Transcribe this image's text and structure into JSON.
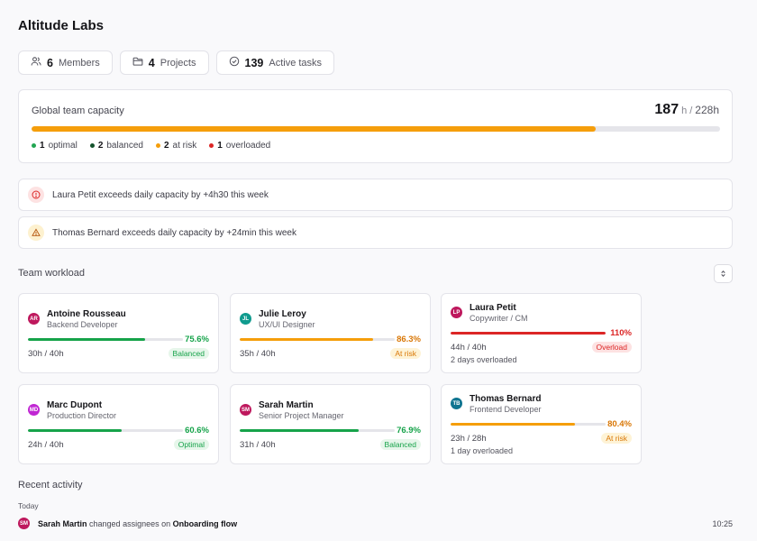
{
  "app": {
    "title": "Altitude Labs"
  },
  "stats": [
    {
      "value": "6",
      "label": "Members",
      "icon": "users-icon"
    },
    {
      "value": "4",
      "label": "Projects",
      "icon": "folder-icon"
    },
    {
      "value": "139",
      "label": "Active tasks",
      "icon": "check-circle-icon"
    }
  ],
  "capacity": {
    "label": "Global team capacity",
    "used": "187",
    "used_unit": "h",
    "sep": "/",
    "total": "228h",
    "fill_fraction": 0.82,
    "legend": [
      {
        "count": "1",
        "label": "optimal",
        "color": "#22a652"
      },
      {
        "count": "2",
        "label": "balanced",
        "color": "#14532d"
      },
      {
        "count": "2",
        "label": "at risk",
        "color": "#f59e0b"
      },
      {
        "count": "1",
        "label": "overloaded",
        "color": "#dc2626"
      }
    ]
  },
  "alerts": [
    {
      "text": "Laura Petit exceeds daily capacity by +4h30 this week",
      "icon": "alert-circle-icon"
    },
    {
      "text": "Thomas Bernard exceeds daily capacity by +24min this week",
      "icon": "warning-triangle-icon"
    }
  ],
  "workload": {
    "title": "Team workload",
    "members": [
      {
        "initials": "AR",
        "name": "Antoine Rousseau",
        "role": "Backend Developer",
        "percent": "75.6%",
        "fraction": 0.756,
        "hours": "30h / 40h",
        "status": "Balanced",
        "note": "",
        "avatar_color": "#be185d",
        "bar_color": "#16a34a"
      },
      {
        "initials": "JL",
        "name": "Julie Leroy",
        "role": "UX/UI Designer",
        "percent": "86.3%",
        "fraction": 0.863,
        "hours": "35h / 40h",
        "status": "At risk",
        "note": "",
        "avatar_color": "#0f9b8e",
        "bar_color": "#f59e0b"
      },
      {
        "initials": "LP",
        "name": "Laura Petit",
        "role": "Copywriter / CM",
        "percent": "110%",
        "fraction": 1.0,
        "hours": "44h / 40h",
        "status": "Overload",
        "note": "2 days overloaded",
        "avatar_color": "#be185d",
        "bar_color": "#dc2626"
      },
      {
        "initials": "MD",
        "name": "Marc Dupont",
        "role": "Production Director",
        "percent": "60.6%",
        "fraction": 0.606,
        "hours": "24h / 40h",
        "status": "Optimal",
        "note": "",
        "avatar_color": "#c026d3",
        "bar_color": "#16a34a"
      },
      {
        "initials": "SM",
        "name": "Sarah Martin",
        "role": "Senior Project Manager",
        "percent": "76.9%",
        "fraction": 0.769,
        "hours": "31h / 40h",
        "status": "Balanced",
        "note": "",
        "avatar_color": "#be185d",
        "bar_color": "#16a34a"
      },
      {
        "initials": "TB",
        "name": "Thomas Bernard",
        "role": "Frontend Developer",
        "percent": "80.4%",
        "fraction": 0.804,
        "hours": "23h / 28h",
        "status": "At risk",
        "note": "1 day overloaded",
        "avatar_color": "#0e7490",
        "bar_color": "#f59e0b"
      }
    ]
  },
  "activity": {
    "title": "Recent activity",
    "group": "Today",
    "items": [
      {
        "initials": "SM",
        "actor": "Sarah Martin",
        "action": "changed assignees on",
        "target": "Onboarding flow",
        "time": "10:25"
      }
    ]
  }
}
